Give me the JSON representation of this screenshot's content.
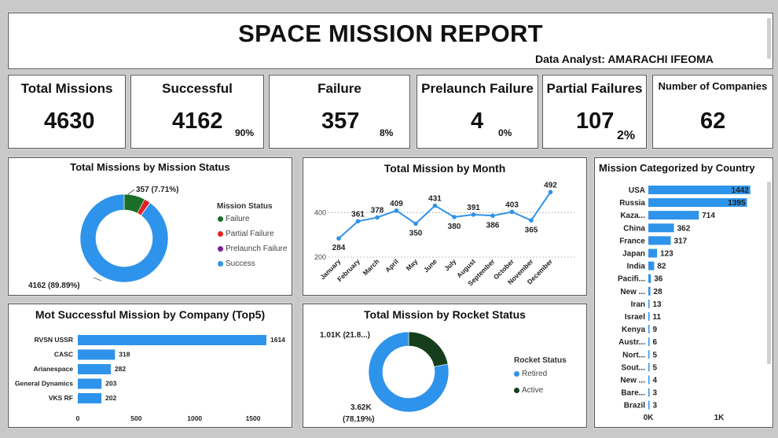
{
  "header": {
    "title": "SPACE MISSION REPORT",
    "analyst": "Data Analyst: AMARACHI IFEOMA"
  },
  "kpis": {
    "total": {
      "label": "Total Missions",
      "value": "4630"
    },
    "successful": {
      "label": "Successful",
      "value": "4162",
      "pct": "90%"
    },
    "failure": {
      "label": "Failure",
      "value": "357",
      "pct": "8%"
    },
    "prelaunch": {
      "label": "Prelaunch Failure",
      "value": "4",
      "pct": "0%"
    },
    "partial": {
      "label": "Partial Failures",
      "value": "107",
      "pct": "2%"
    },
    "companies": {
      "label": "Number of Companies",
      "value": "62"
    }
  },
  "colors": {
    "success": "#2e93ea",
    "failure": "#1a6e28",
    "partial_failure": "#e02424",
    "prelaunch_failure": "#7a1fa2",
    "retired": "#2e93ea",
    "active": "#153f1c"
  },
  "chart_data": [
    {
      "id": "status",
      "type": "pie",
      "title": "Total Missions by Mission Status",
      "legend_title": "Mission Status",
      "legend_position": "right",
      "slices": [
        {
          "name": "Failure",
          "value": 357
        },
        {
          "name": "Partial Failure",
          "value": 107
        },
        {
          "name": "Prelaunch Failure",
          "value": 4
        },
        {
          "name": "Success",
          "value": 4162
        }
      ],
      "labels": {
        "failure": "357 (7.71%)",
        "success": "4162 (89.89%)"
      }
    },
    {
      "id": "month",
      "type": "line",
      "title": "Total Mission by Month",
      "categories": [
        "January",
        "February",
        "March",
        "April",
        "May",
        "June",
        "July",
        "August",
        "September",
        "October",
        "November",
        "December"
      ],
      "values": [
        284,
        361,
        378,
        409,
        350,
        431,
        380,
        391,
        386,
        403,
        365,
        492
      ],
      "y_ticks": [
        200,
        400
      ],
      "ylim": [
        200,
        500
      ],
      "grid": true
    },
    {
      "id": "country",
      "type": "bar",
      "orientation": "horizontal",
      "title": "Mission Categorized by Country",
      "categories": [
        "USA",
        "Russia",
        "Kaza...",
        "China",
        "France",
        "Japan",
        "India",
        "Pacifi...",
        "New ...",
        "Iran",
        "Israel",
        "Kenya",
        "Austr...",
        "Nort...",
        "Sout...",
        "New ...",
        "Bare...",
        "Brazil"
      ],
      "values": [
        1442,
        1395,
        714,
        362,
        317,
        123,
        82,
        36,
        28,
        13,
        11,
        9,
        6,
        5,
        5,
        4,
        3,
        3
      ],
      "x_ticks": [
        "0K",
        "1K"
      ],
      "xlim": [
        0,
        1500
      ]
    },
    {
      "id": "company",
      "type": "bar",
      "orientation": "horizontal",
      "title": "Mot Successful Mission by Company (Top5)",
      "categories": [
        "RVSN USSR",
        "CASC",
        "Arianespace",
        "General Dynamics",
        "VKS RF"
      ],
      "values": [
        1614,
        318,
        282,
        203,
        202
      ],
      "x_ticks": [
        0,
        500,
        1000,
        1500
      ],
      "xlim": [
        0,
        1700
      ]
    },
    {
      "id": "rocket",
      "type": "pie",
      "title": "Total Mission by Rocket Status",
      "legend_title": "Rocket Status",
      "legend_position": "right",
      "slices": [
        {
          "name": "Active",
          "value": 1010
        },
        {
          "name": "Retired",
          "value": 3620
        }
      ],
      "labels": {
        "active": "1.01K (21.8...)",
        "retired_value": "3.62K",
        "retired_pct": "(78.19%)"
      }
    }
  ]
}
